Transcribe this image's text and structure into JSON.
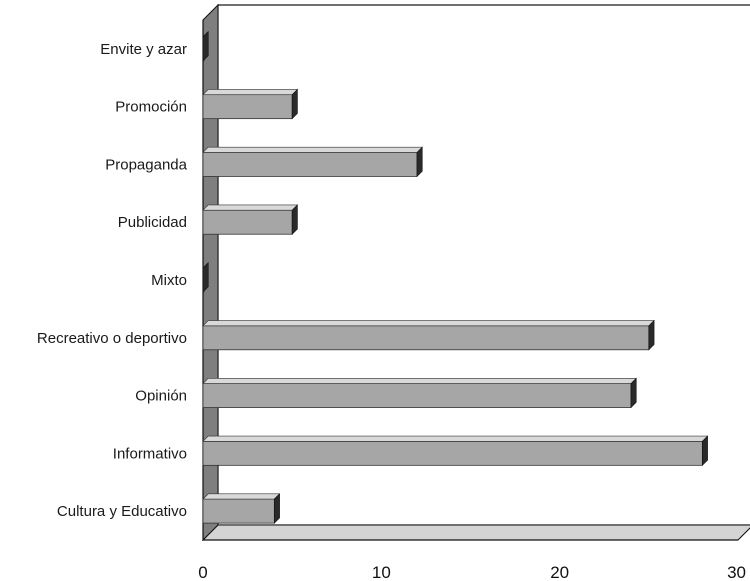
{
  "chart_data": {
    "type": "bar",
    "orientation": "horizontal",
    "style": "3d",
    "categories": [
      "Cultura y Educativo",
      "Informativo",
      "Opinión",
      "Recreativo o deportivo",
      "Mixto",
      "Publicidad",
      "Propaganda",
      "Promoción",
      "Envite y azar"
    ],
    "values": [
      4,
      28,
      24,
      25,
      0,
      5,
      12,
      5,
      0
    ],
    "title": "",
    "xlabel": "",
    "ylabel": "",
    "xlim": [
      0,
      30
    ],
    "xticks": [
      0,
      10,
      20,
      30
    ],
    "xtick_labels": [
      "0",
      "10",
      "20",
      "30"
    ],
    "grid": "vertical",
    "legend": "none",
    "colors": {
      "bar_face": "#a6a6a6",
      "bar_top": "#d9d9d9",
      "bar_end": "#2a2a2a",
      "wall": "#7f7f7f",
      "floor": "#d4d4d4",
      "axis_line": "#111111",
      "grid_line": "#bfbfbf"
    }
  }
}
